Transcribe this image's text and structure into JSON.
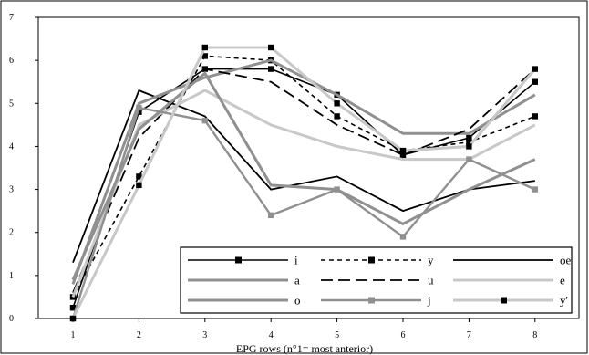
{
  "chart_data": {
    "type": "line",
    "title": "",
    "xlabel": "EPG rows (n°1= most anterior)",
    "ylabel": "",
    "categories": [
      "1",
      "2",
      "3",
      "4",
      "5",
      "6",
      "7",
      "8"
    ],
    "ylim": [
      0,
      7
    ],
    "yticks": [
      "0",
      "1",
      "2",
      "3",
      "4",
      "5",
      "6",
      "7"
    ],
    "grid": false,
    "legend_position": "bottom-right",
    "series": [
      {
        "name": "i",
        "values": [
          0.25,
          4.8,
          5.8,
          5.8,
          5.2,
          3.8,
          4.2,
          5.5
        ],
        "color": "#000000",
        "dash": "solid",
        "width": 1.6,
        "marker": true
      },
      {
        "name": "y",
        "values": [
          0.5,
          3.3,
          6.1,
          6.0,
          4.7,
          3.9,
          4.1,
          4.7
        ],
        "color": "#000000",
        "dash": "short",
        "width": 1.6,
        "marker": true
      },
      {
        "name": "oe",
        "values": [
          1.3,
          5.3,
          4.7,
          3.0,
          3.3,
          2.5,
          3.0,
          3.2
        ],
        "color": "#000000",
        "dash": "solid",
        "width": 1.8,
        "marker": false
      },
      {
        "name": "a",
        "values": [
          0.8,
          5.0,
          5.6,
          6.0,
          5.2,
          4.3,
          4.3,
          5.2
        ],
        "color": "#909090",
        "dash": "solid",
        "width": 3.0,
        "marker": false
      },
      {
        "name": "u",
        "values": [
          0.6,
          4.2,
          5.8,
          5.5,
          4.5,
          3.8,
          4.4,
          5.8
        ],
        "color": "#000000",
        "dash": "long",
        "width": 1.8,
        "marker": false
      },
      {
        "name": "e",
        "values": [
          0.5,
          4.5,
          5.3,
          4.5,
          4.0,
          3.7,
          3.7,
          4.5
        ],
        "color": "#c8c8c8",
        "dash": "solid",
        "width": 3.0,
        "marker": false
      },
      {
        "name": "o",
        "values": [
          0.9,
          4.4,
          5.7,
          3.1,
          3.0,
          2.2,
          3.0,
          3.7
        ],
        "color": "#909090",
        "dash": "solid",
        "width": 3.0,
        "marker": false
      },
      {
        "name": "j",
        "values": [
          0.0,
          4.9,
          4.6,
          2.4,
          3.0,
          1.9,
          3.7,
          3.0
        ],
        "color": "#909090",
        "dash": "solid",
        "width": 2.4,
        "marker": true
      },
      {
        "name": "y'",
        "values": [
          0.0,
          3.1,
          6.3,
          6.3,
          5.0,
          3.9,
          4.0,
          5.8
        ],
        "color": "#c8c8c8",
        "dash": "solid",
        "width": 3.0,
        "marker": true
      }
    ]
  }
}
